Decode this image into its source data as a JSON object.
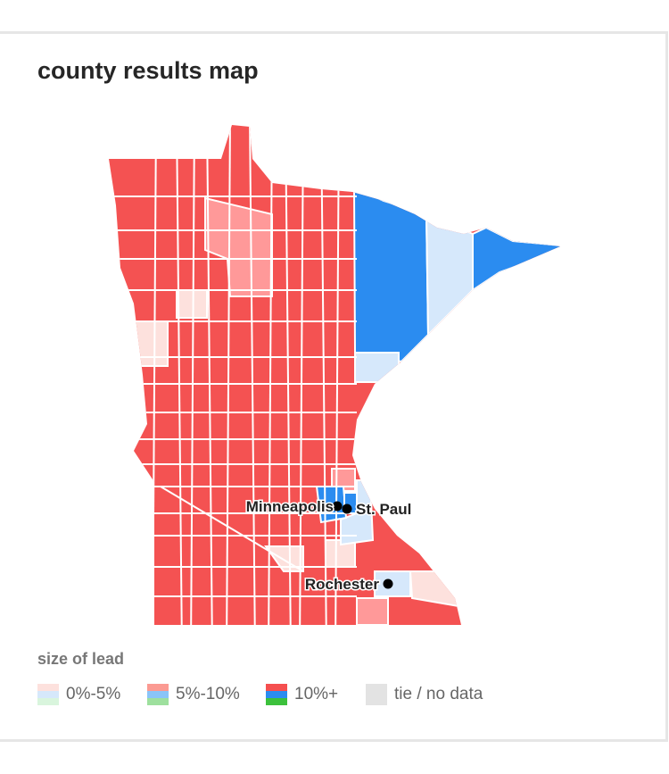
{
  "title": "county results map",
  "cities": [
    {
      "name": "Minneapolis"
    },
    {
      "name": "St. Paul"
    },
    {
      "name": "Rochester"
    }
  ],
  "legend": {
    "title": "size of lead",
    "items": [
      "0%-5%",
      "5%-10%",
      "10%+",
      "tie / no data"
    ]
  }
}
